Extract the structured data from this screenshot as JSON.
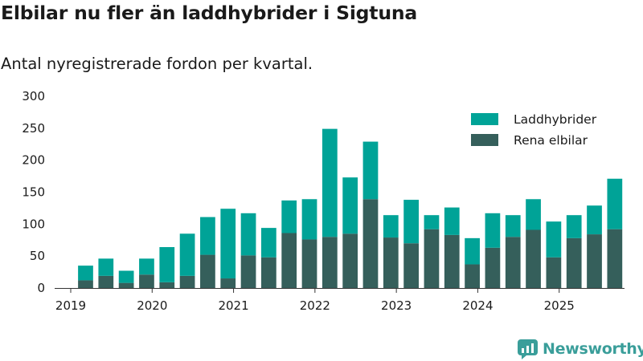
{
  "chart_data": {
    "type": "bar",
    "stacked": true,
    "title": "Elbilar nu fler än laddhybrider i Sigtuna",
    "subtitle": "Antal nyregistrerade fordon per kvartal.",
    "xlabel": "",
    "ylabel": "",
    "ylim": [
      0,
      300
    ],
    "yticks": [
      "0",
      "50",
      "100",
      "150",
      "200",
      "250",
      "300"
    ],
    "xticks": [
      "2019",
      "2020",
      "2021",
      "2022",
      "2023",
      "2024",
      "2025"
    ],
    "grid": false,
    "legend_position": "top-right",
    "categories": [
      "2019 Q2",
      "2019 Q3",
      "2019 Q4",
      "2020 Q1",
      "2020 Q2",
      "2020 Q3",
      "2020 Q4",
      "2021 Q1",
      "2021 Q2",
      "2021 Q3",
      "2021 Q4",
      "2022 Q1",
      "2022 Q2",
      "2022 Q3",
      "2022 Q4",
      "2023 Q1",
      "2023 Q2",
      "2023 Q3",
      "2023 Q4",
      "2024 Q1",
      "2024 Q2",
      "2024 Q3",
      "2024 Q4",
      "2025 Q1",
      "2025 Q2",
      "2025 Q3",
      "2025 Q4"
    ],
    "series": [
      {
        "name": "Rena elbilar",
        "color": "#355f5b",
        "values": [
          12,
          19,
          8,
          21,
          9,
          19,
          52,
          15,
          51,
          48,
          86,
          76,
          80,
          85,
          139,
          79,
          70,
          92,
          83,
          37,
          63,
          80,
          91,
          48,
          78,
          84,
          92
        ]
      },
      {
        "name": "Laddhybrider",
        "color": "#00a397",
        "values": [
          23,
          27,
          19,
          25,
          55,
          66,
          59,
          109,
          66,
          46,
          51,
          63,
          169,
          88,
          90,
          35,
          68,
          22,
          43,
          41,
          54,
          34,
          48,
          56,
          36,
          45,
          79
        ]
      }
    ],
    "legend": [
      "Laddhybrider",
      "Rena elbilar"
    ]
  },
  "branding": {
    "logo_text": "Newsworthy",
    "logo_icon": "newsworthy-chart-icon",
    "logo_color": "#3a9e9a"
  }
}
